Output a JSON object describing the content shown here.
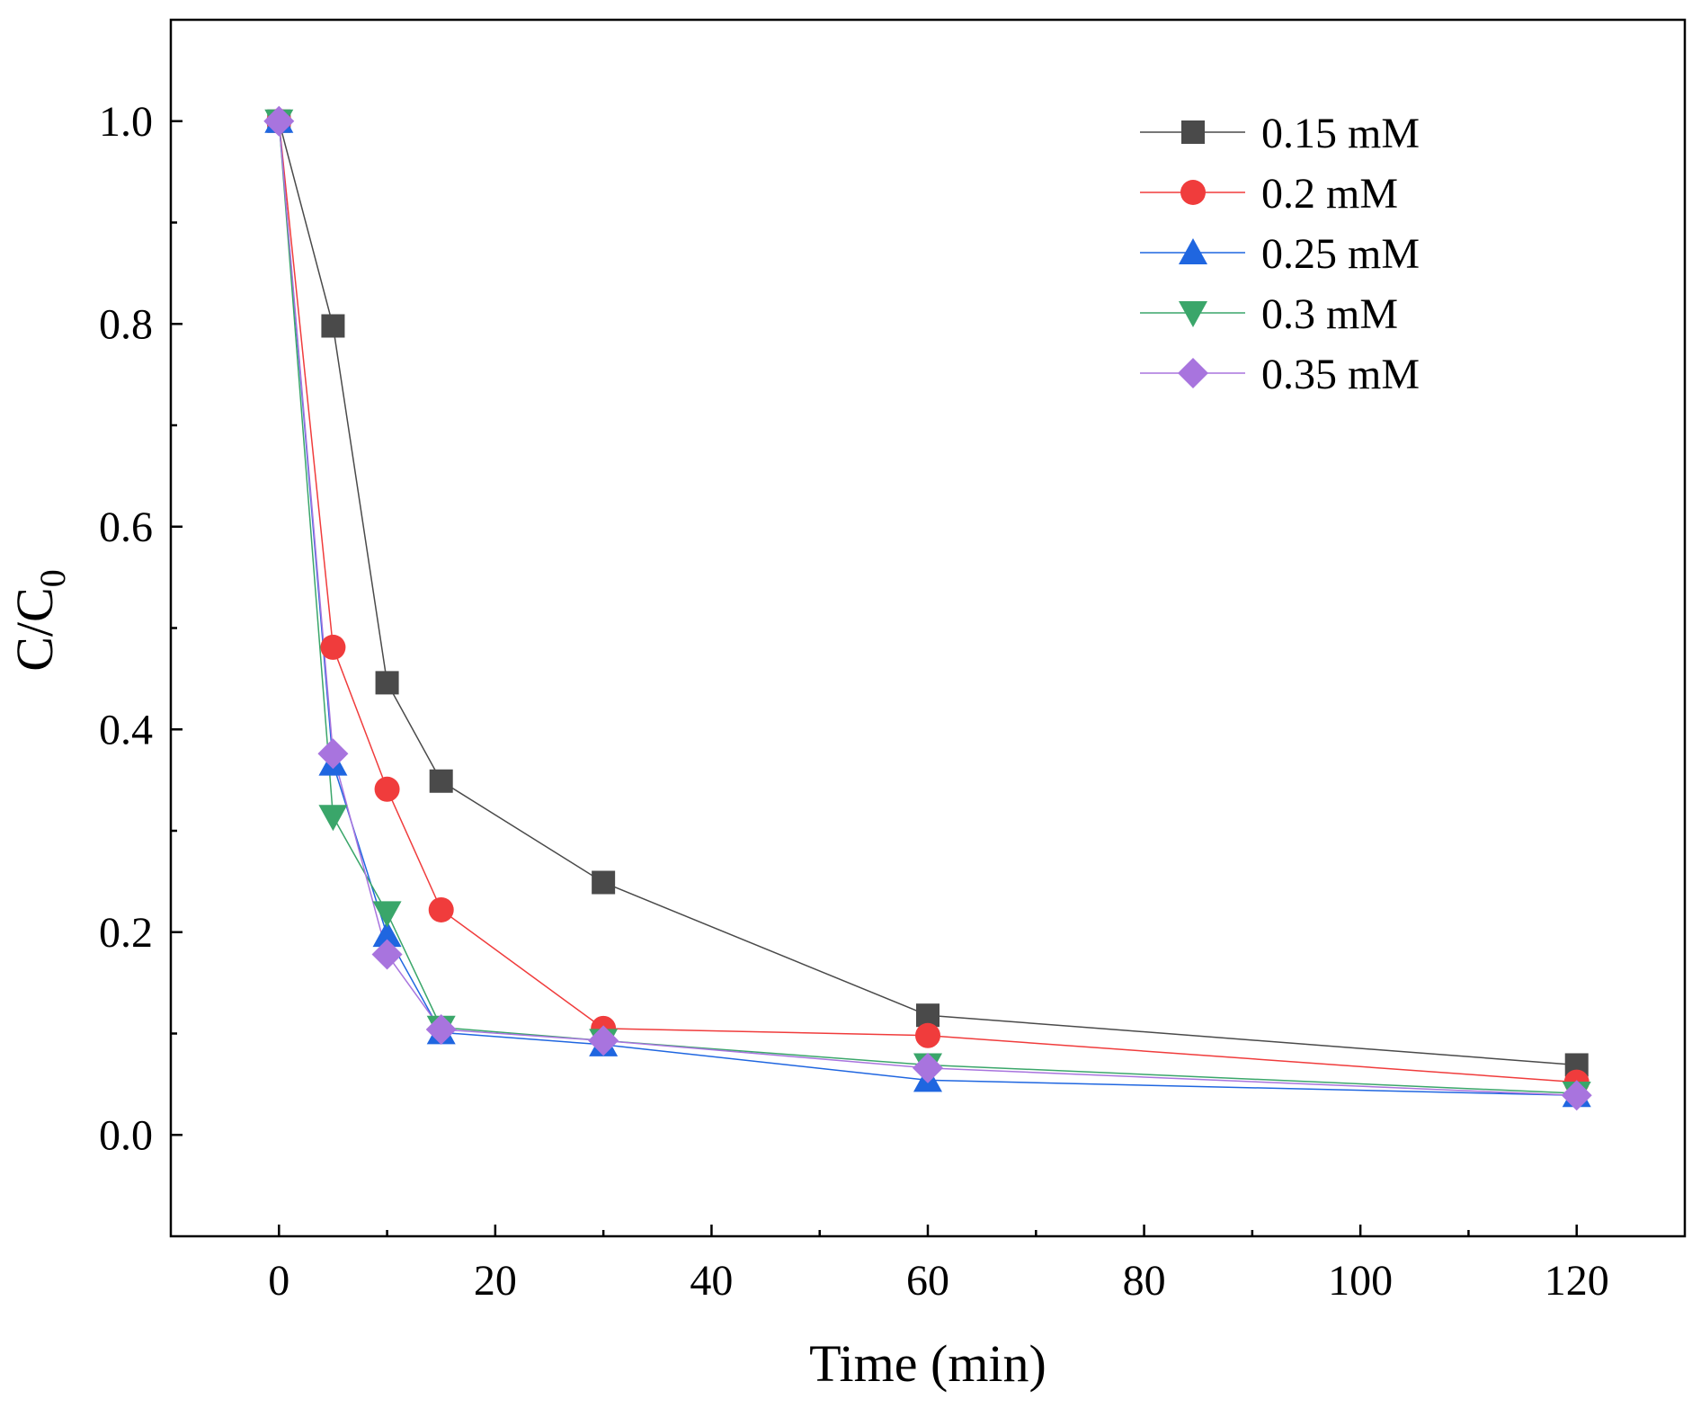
{
  "chart_data": {
    "type": "line",
    "title": "",
    "xlabel": "Time (min)",
    "ylabel": {
      "main": "C/C",
      "subscript": "0"
    },
    "xlim": [
      -10,
      130
    ],
    "ylim": [
      -0.1,
      1.1
    ],
    "x_major_ticks": [
      0,
      20,
      40,
      60,
      80,
      100,
      120
    ],
    "x_minor_ticks": [
      10,
      30,
      50,
      70,
      90,
      110
    ],
    "y_major_ticks": [
      0.0,
      0.2,
      0.4,
      0.6,
      0.8,
      1.0
    ],
    "y_minor_ticks": [
      0.1,
      0.3,
      0.5,
      0.7,
      0.9
    ],
    "x_tick_labels": [
      "0",
      "20",
      "40",
      "60",
      "80",
      "100",
      "120"
    ],
    "y_tick_labels": [
      "0.0",
      "0.2",
      "0.4",
      "0.6",
      "0.8",
      "1.0"
    ],
    "grid": false,
    "legend_position": "top-right",
    "x": [
      0,
      5,
      10,
      15,
      30,
      60,
      120
    ],
    "series": [
      {
        "name": "0.15 mM",
        "marker": "square",
        "color": "#4a4a4a",
        "values": [
          1.0,
          0.798,
          0.446,
          0.349,
          0.249,
          0.118,
          0.069
        ]
      },
      {
        "name": "0.2 mM",
        "marker": "circle",
        "color": "#f03c3c",
        "values": [
          1.0,
          0.481,
          0.341,
          0.222,
          0.105,
          0.098,
          0.052
        ]
      },
      {
        "name": "0.25 mM",
        "marker": "triangle-up",
        "color": "#1f66e0",
        "values": [
          1.0,
          0.366,
          0.197,
          0.101,
          0.089,
          0.054,
          0.039
        ]
      },
      {
        "name": "0.3 mM",
        "marker": "triangle-down",
        "color": "#3aa66a",
        "values": [
          1.0,
          0.314,
          0.219,
          0.106,
          0.093,
          0.069,
          0.041
        ]
      },
      {
        "name": "0.35 mM",
        "marker": "diamond",
        "color": "#a874de",
        "values": [
          1.0,
          0.376,
          0.178,
          0.104,
          0.093,
          0.066,
          0.039
        ]
      }
    ]
  }
}
